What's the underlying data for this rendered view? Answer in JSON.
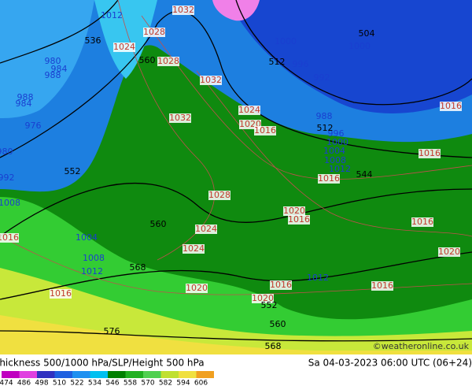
{
  "title": "Thickness 500/1000 hPa/SLP/Height 500 hPa",
  "datetime": "Sa 04-03-2023 06:00 UTC (06+24)",
  "copyright": "©weatheronline.co.uk",
  "colorbar": [
    474,
    486,
    498,
    510,
    522,
    534,
    546,
    558,
    570,
    582,
    594,
    606
  ],
  "pressure_labels": [
    "1032",
    "1028",
    "1024",
    "1028",
    "1032",
    "1032",
    "1024",
    "1020",
    "1016",
    "1016",
    "1016",
    "1016",
    "1028",
    "1020",
    "1016",
    "1024",
    "1024",
    "1016",
    "1020",
    "1016",
    "1016",
    "1020",
    "1016",
    "1016",
    "1020"
  ],
  "blue_labels": [
    "1012",
    "1000",
    "1000",
    "996",
    "992",
    "988",
    "976",
    "1008",
    "1004",
    "1008",
    "1012",
    "1012",
    "1012",
    "1008",
    "1004",
    "1000",
    "996",
    "980",
    "984",
    "988",
    "988",
    "984",
    "980",
    "992"
  ],
  "height_labels": [
    "536",
    "560",
    "512",
    "504",
    "552",
    "544",
    "560",
    "568",
    "552",
    "560",
    "568",
    "576",
    "512"
  ]
}
